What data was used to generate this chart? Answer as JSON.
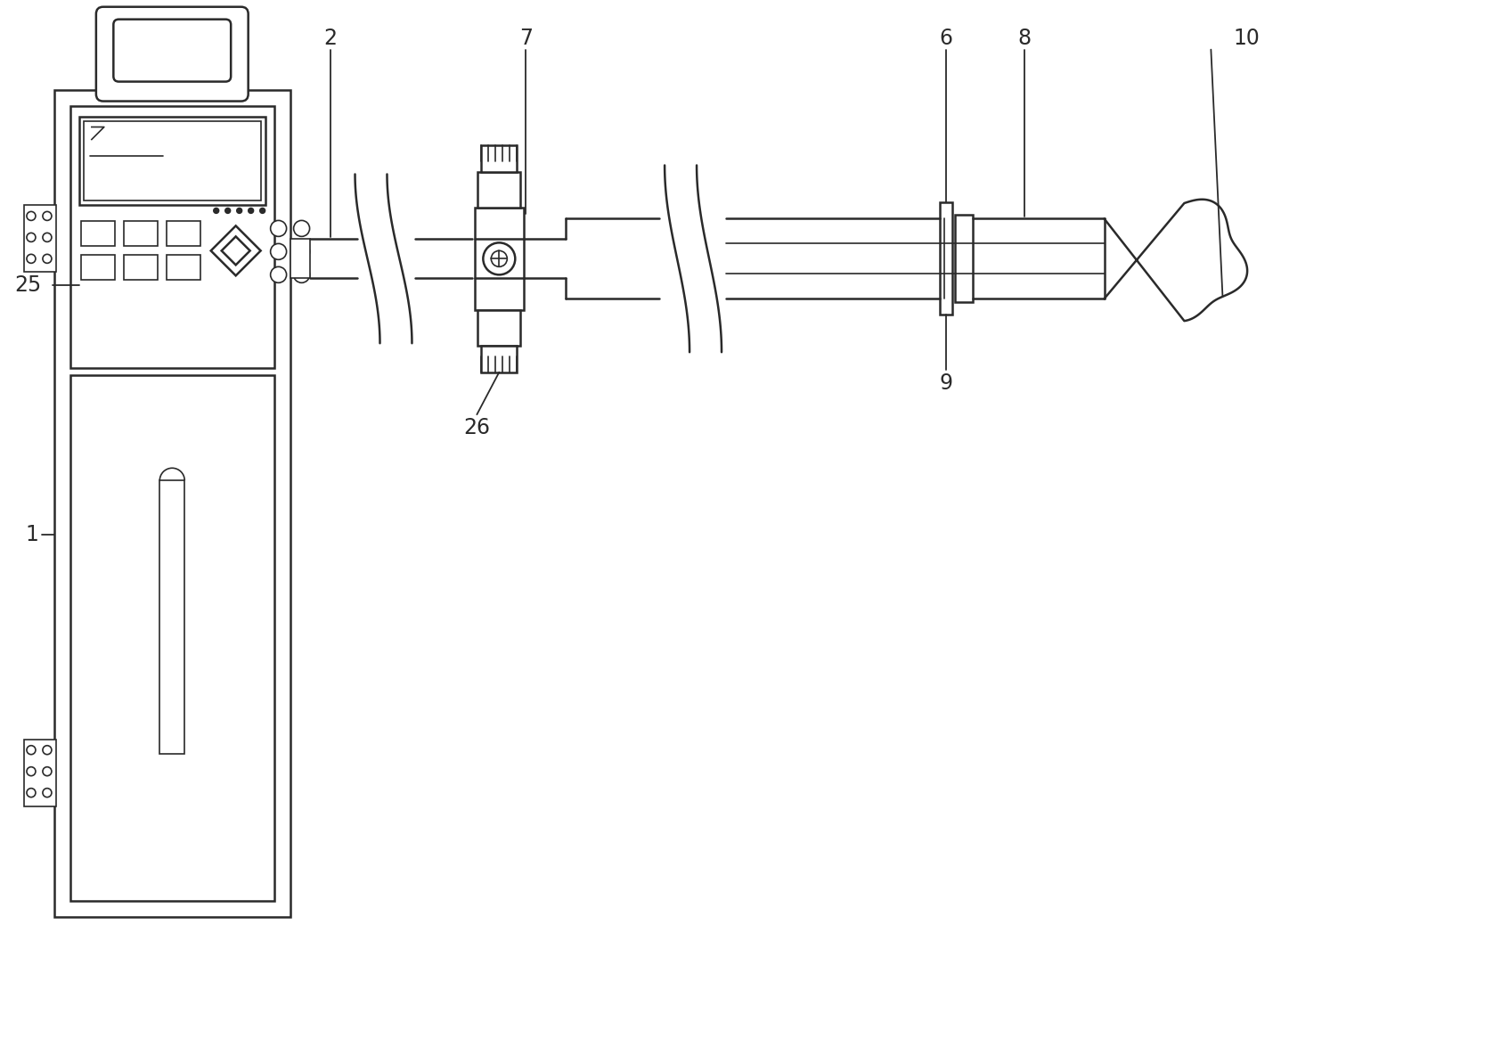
{
  "bg_color": "#ffffff",
  "line_color": "#2a2a2a",
  "lw": 1.8,
  "lw_thin": 1.2,
  "label_fontsize": 17,
  "fig_w": 16.67,
  "fig_h": 11.66,
  "dpi": 100
}
